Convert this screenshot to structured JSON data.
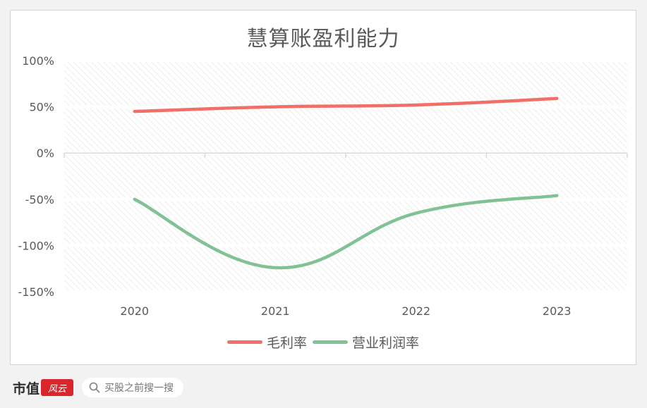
{
  "chart_data": {
    "type": "line",
    "title": "慧算账盈利能力",
    "categories": [
      "2020",
      "2021",
      "2022",
      "2023"
    ],
    "series": [
      {
        "name": "毛利率",
        "values": [
          45,
          50,
          52,
          59
        ],
        "color": "#f07067"
      },
      {
        "name": "营业利润率",
        "values": [
          -50,
          -124,
          -65,
          -46
        ],
        "color": "#80c196"
      }
    ],
    "ylim": [
      -150,
      100
    ],
    "yticks": [
      100,
      50,
      0,
      -50,
      -100,
      -150
    ],
    "ytick_labels": [
      "100%",
      "50%",
      "0%",
      "-50%",
      "-100%",
      "-150%"
    ],
    "grid": true,
    "legend_position": "bottom",
    "xlabel": "",
    "ylabel": ""
  },
  "footer": {
    "brand": "市值",
    "brand_logo_text": "风云",
    "search_placeholder": "买股之前搜一搜"
  },
  "colors": {
    "background": "#f2f2f2",
    "card": "#ffffff",
    "axis": "#d9d9d9",
    "text": "#595959"
  }
}
